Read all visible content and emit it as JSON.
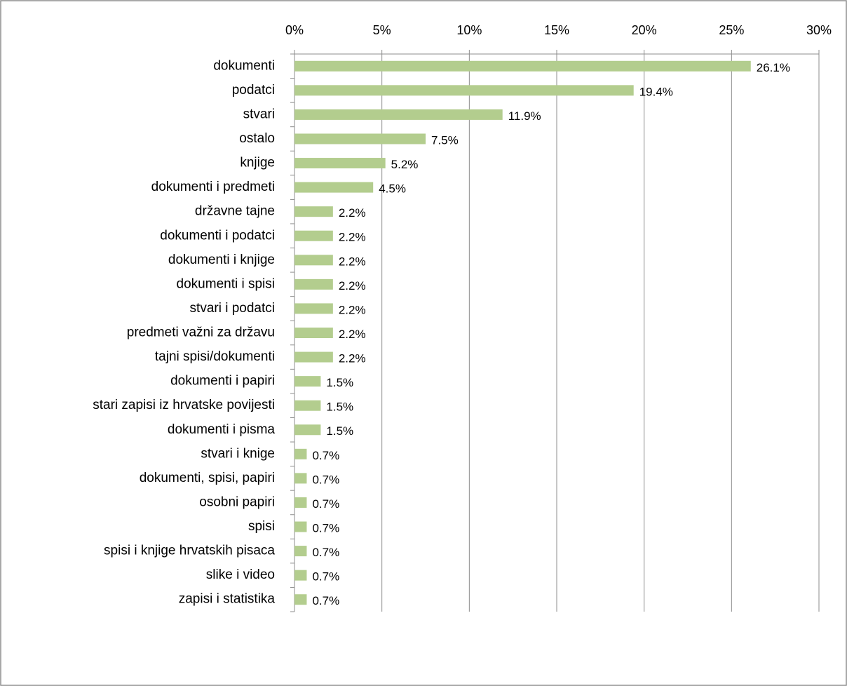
{
  "chart_data": {
    "type": "bar",
    "orientation": "horizontal",
    "categories": [
      "dokumenti",
      "podatci",
      "stvari",
      "ostalo",
      "knjige",
      "dokumenti i predmeti",
      "državne tajne",
      "dokumenti i podatci",
      "dokumenti i knjige",
      "dokumenti i spisi",
      "stvari i podatci",
      "predmeti važni za državu",
      "tajni spisi/dokumenti",
      "dokumenti i papiri",
      "stari zapisi iz hrvatske povijesti",
      "dokumenti i pisma",
      "stvari i knige",
      "dokumenti, spisi, papiri",
      "osobni papiri",
      "spisi",
      "spisi i knjige hrvatskih pisaca",
      "slike i video",
      "zapisi i statistika"
    ],
    "values": [
      26.1,
      19.4,
      11.9,
      7.5,
      5.2,
      4.5,
      2.2,
      2.2,
      2.2,
      2.2,
      2.2,
      2.2,
      2.2,
      1.5,
      1.5,
      1.5,
      0.7,
      0.7,
      0.7,
      0.7,
      0.7,
      0.7,
      0.7
    ],
    "value_labels": [
      "26.1%",
      "19.4%",
      "11.9%",
      "7.5%",
      "5.2%",
      "4.5%",
      "2.2%",
      "2.2%",
      "2.2%",
      "2.2%",
      "2.2%",
      "2.2%",
      "2.2%",
      "1.5%",
      "1.5%",
      "1.5%",
      "0.7%",
      "0.7%",
      "0.7%",
      "0.7%",
      "0.7%",
      "0.7%",
      "0.7%"
    ],
    "color": "#b3cd8e",
    "xlim": [
      0,
      30
    ],
    "xticks": [
      {
        "value": 0,
        "label": "0%"
      },
      {
        "value": 5,
        "label": "5%"
      },
      {
        "value": 10,
        "label": "10%"
      },
      {
        "value": 15,
        "label": "15%"
      },
      {
        "value": 20,
        "label": "20%"
      },
      {
        "value": 25,
        "label": "25%"
      },
      {
        "value": 30,
        "label": "30%"
      }
    ],
    "grid": true
  }
}
